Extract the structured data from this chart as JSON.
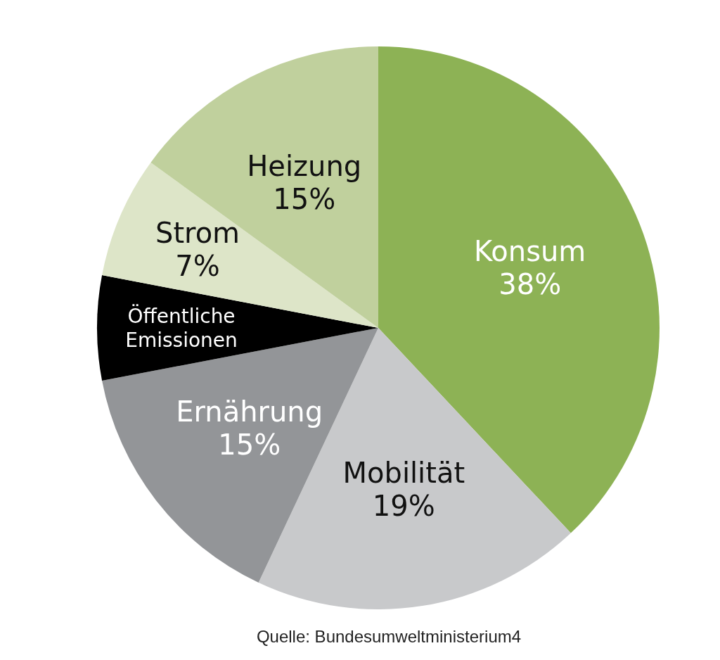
{
  "chart_data": {
    "type": "pie",
    "categories": [
      "Konsum",
      "Mobilität",
      "Ernährung",
      "Öffentliche Emissionen",
      "Strom",
      "Heizung"
    ],
    "values": [
      38,
      19,
      15,
      6,
      7,
      15
    ],
    "value_labels": [
      "38%",
      "19%",
      "15%",
      null,
      "7%",
      "15%"
    ],
    "colors": [
      "#8db255",
      "#c8c9cb",
      "#939598",
      "#000000",
      "#dde5c8",
      "#c0d09d"
    ],
    "annotations": [
      "Quelle: Bundesumweltministerium4"
    ]
  }
}
